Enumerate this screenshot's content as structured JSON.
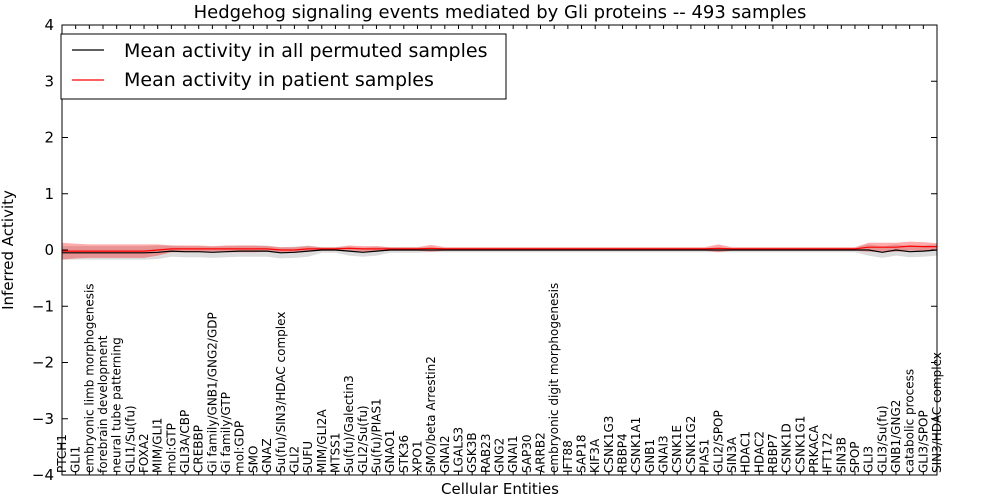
{
  "chart_data": {
    "type": "line",
    "title": "Hedgehog signaling events mediated by Gli proteins -- 493 samples",
    "xlabel": "Cellular Entities",
    "ylabel": "Inferred Activity",
    "ylim": [
      -4,
      4
    ],
    "yticks": [
      -4,
      -3,
      -2,
      -1,
      0,
      1,
      2,
      3,
      4
    ],
    "ytick_labels": [
      "−4",
      "−3",
      "−2",
      "−1",
      "0",
      "1",
      "2",
      "3",
      "4"
    ],
    "legend_position": "top-left",
    "categories": [
      "PTCH1",
      "GLI1",
      "embryonic limb morphogenesis",
      "forebrain development",
      "neural tube patterning",
      "GLI1/Su(fu)",
      "FOXA2",
      "MIM/GLI1",
      "mol:GTP",
      "GLI3A/CBP",
      "CREBBP",
      "Gi family/GNB1/GNG2/GDP",
      "Gi family/GTP",
      "mol:GDP",
      "SMO",
      "GNAZ",
      "Su(fu)/SIN3/HDAC complex",
      "GLI2",
      "SUFU",
      "MIM/GLI2A",
      "MTSS1",
      "Su(fu)/Galectin3",
      "GLI2/Su(fu)",
      "Su(fu)/PIAS1",
      "GNAO1",
      "STK36",
      "XPO1",
      "SMO/beta Arrestin2",
      "GNAI2",
      "LGALS3",
      "GSK3B",
      "RAB23",
      "GNG2",
      "GNAI1",
      "SAP30",
      "ARRB2",
      "embryonic digit morphogenesis",
      "IFT88",
      "SAP18",
      "KIF3A",
      "CSNK1G3",
      "RBBP4",
      "CSNK1A1",
      "GNB1",
      "GNAI3",
      "CSNK1E",
      "CSNK1G2",
      "PIAS1",
      "GLI2/SPOP",
      "SIN3A",
      "HDAC1",
      "HDAC2",
      "RBBP7",
      "CSNK1D",
      "CSNK1G1",
      "PRKACA",
      "IFT172",
      "SIN3B",
      "SPOP",
      "GLI3",
      "GLI3/Su(fu)",
      "GNB1/GNG2",
      "catabolic process",
      "GLI3/SPOP",
      "SIN3/HDAC complex"
    ],
    "series": [
      {
        "name": "Mean activity in all permuted samples",
        "color": "#000000",
        "values": [
          -0.05,
          -0.05,
          -0.05,
          -0.05,
          -0.05,
          -0.05,
          -0.05,
          -0.04,
          -0.02,
          -0.03,
          -0.03,
          -0.04,
          -0.03,
          -0.02,
          -0.02,
          -0.02,
          -0.05,
          -0.04,
          -0.02,
          0,
          0,
          -0.02,
          -0.04,
          -0.02,
          0,
          0,
          0,
          0,
          0,
          0,
          0,
          0,
          0,
          0,
          0,
          0,
          0,
          0,
          0,
          0,
          0,
          0,
          0,
          0,
          0,
          0,
          0,
          0,
          0,
          0,
          0,
          0,
          0,
          0,
          0,
          0,
          0,
          0,
          0,
          0,
          -0.04,
          0,
          -0.03,
          -0.02,
          0
        ],
        "band": [
          0.12,
          0.12,
          0.12,
          0.12,
          0.12,
          0.12,
          0.12,
          0.12,
          0.1,
          0.1,
          0.1,
          0.1,
          0.1,
          0.1,
          0.1,
          0.1,
          0.1,
          0.1,
          0.1,
          0.05,
          0.05,
          0.08,
          0.08,
          0.08,
          0.05,
          0.05,
          0.05,
          0.04,
          0.04,
          0.04,
          0.04,
          0.04,
          0.04,
          0.04,
          0.04,
          0.04,
          0.04,
          0.04,
          0.04,
          0.04,
          0.04,
          0.04,
          0.04,
          0.04,
          0.04,
          0.04,
          0.04,
          0.04,
          0.04,
          0.04,
          0.04,
          0.04,
          0.04,
          0.04,
          0.04,
          0.04,
          0.04,
          0.04,
          0.04,
          0.1,
          0.1,
          0.1,
          0.1,
          0.1,
          0.1
        ]
      },
      {
        "name": "Mean activity in patient samples",
        "color": "#ff0000",
        "values": [
          -0.02,
          -0.02,
          -0.02,
          -0.02,
          -0.02,
          -0.02,
          -0.02,
          0,
          0.02,
          0.02,
          0.02,
          0.02,
          0.02,
          0.02,
          0.02,
          0.02,
          0,
          0,
          0.02,
          0.02,
          0.02,
          0.03,
          0.02,
          0.02,
          0.02,
          0.02,
          0.02,
          0.03,
          0.02,
          0.02,
          0.02,
          0.02,
          0.02,
          0.02,
          0.02,
          0.02,
          0.02,
          0.02,
          0.02,
          0.02,
          0.02,
          0.02,
          0.02,
          0.02,
          0.02,
          0.02,
          0.02,
          0.02,
          0.03,
          0.02,
          0.02,
          0.02,
          0.02,
          0.02,
          0.02,
          0.02,
          0.02,
          0.02,
          0.02,
          0.05,
          0.05,
          0.05,
          0.07,
          0.06,
          0.06
        ],
        "band": [
          0.15,
          0.13,
          0.12,
          0.12,
          0.12,
          0.12,
          0.12,
          0.1,
          0.06,
          0.06,
          0.06,
          0.05,
          0.06,
          0.06,
          0.06,
          0.05,
          0.05,
          0.05,
          0.05,
          0.03,
          0.03,
          0.05,
          0.05,
          0.05,
          0.03,
          0.03,
          0.03,
          0.06,
          0.03,
          0.03,
          0.03,
          0.03,
          0.03,
          0.03,
          0.03,
          0.03,
          0.03,
          0.03,
          0.03,
          0.03,
          0.03,
          0.03,
          0.03,
          0.03,
          0.03,
          0.03,
          0.03,
          0.03,
          0.07,
          0.03,
          0.03,
          0.03,
          0.03,
          0.03,
          0.03,
          0.03,
          0.03,
          0.03,
          0.03,
          0.08,
          0.08,
          0.08,
          0.08,
          0.08,
          0.06
        ]
      }
    ]
  }
}
